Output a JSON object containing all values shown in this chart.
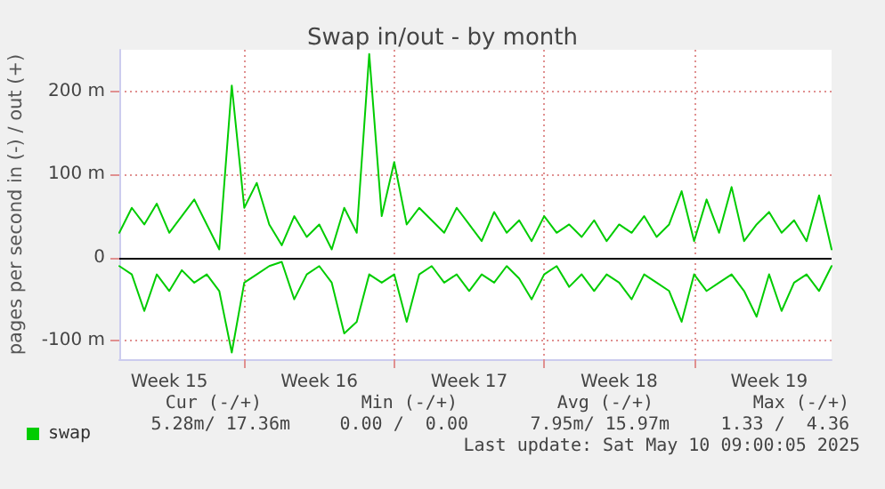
{
  "chart_data": {
    "type": "line",
    "title": "Swap in/out - by month",
    "ylabel": "pages per second in (-) / out (+)",
    "categories": [
      null,
      null,
      null,
      null,
      "Week 15",
      null,
      null,
      null,
      null,
      null,
      null,
      null,
      null,
      null,
      null,
      null,
      "Week 16",
      null,
      null,
      null,
      null,
      null,
      null,
      null,
      null,
      null,
      null,
      null,
      "Week 17",
      null,
      null,
      null,
      null,
      null,
      null,
      null,
      null,
      null,
      null,
      null,
      "Week 18",
      null,
      null,
      null,
      null,
      null,
      null,
      null,
      null,
      null,
      null,
      null,
      "Week 19",
      null,
      null,
      null,
      null,
      null
    ],
    "series": [
      {
        "name": "swap",
        "color": "#00cc00",
        "values": [
          30,
          60,
          40,
          65,
          30,
          50,
          70,
          40,
          10,
          207,
          60,
          90,
          40,
          15,
          50,
          25,
          40,
          10,
          60,
          30,
          245,
          50,
          115,
          40,
          60,
          45,
          30,
          60,
          40,
          20,
          55,
          30,
          45,
          20,
          50,
          30,
          40,
          25,
          45,
          20,
          40,
          30,
          50,
          25,
          40,
          80,
          20,
          70,
          30,
          85,
          20,
          40,
          55,
          30,
          45,
          20,
          75,
          10
        ]
      },
      {
        "color": "#00cc00",
        "values": [
          -10,
          -20,
          -64,
          -20,
          -40,
          -15,
          -30,
          -20,
          -40,
          -114,
          -30,
          -20,
          -10,
          -5,
          -50,
          -20,
          -10,
          -30,
          -91,
          -77,
          -20,
          -30,
          -20,
          -77,
          -20,
          -10,
          -30,
          -20,
          -40,
          -20,
          -30,
          -10,
          -25,
          -50,
          -20,
          -10,
          -35,
          -20,
          -40,
          -20,
          -30,
          -50,
          -20,
          -30,
          -40,
          -77,
          -20,
          -40,
          -30,
          -20,
          -40,
          -71,
          -20,
          -64,
          -30,
          -20,
          -40,
          -10
        ]
      }
    ],
    "ylim": [
      -122,
      250
    ],
    "yticks": [
      {
        "value": -100,
        "label": "-100 m"
      },
      0,
      {
        "value": 100,
        "label": "100 m"
      },
      {
        "value": 200,
        "label": "200 m"
      }
    ],
    "ref_lines": [
      {
        "axis": "y",
        "value": 0,
        "color": "#000000"
      }
    ],
    "grid": true,
    "legend": "bottom left",
    "marker": "none",
    "line_style": "solid",
    "annotations": [
      "Cur (-/+)",
      "Min (-/+)",
      "Avg (-/+)",
      "Max (-/+)",
      "5.28m/ 17.36m",
      "0.00 /  0.00",
      "7.95m/ 15.97m",
      "1.33 /  4.36",
      "Last update: Sat May 10 09:00:05 2025"
    ]
  }
}
